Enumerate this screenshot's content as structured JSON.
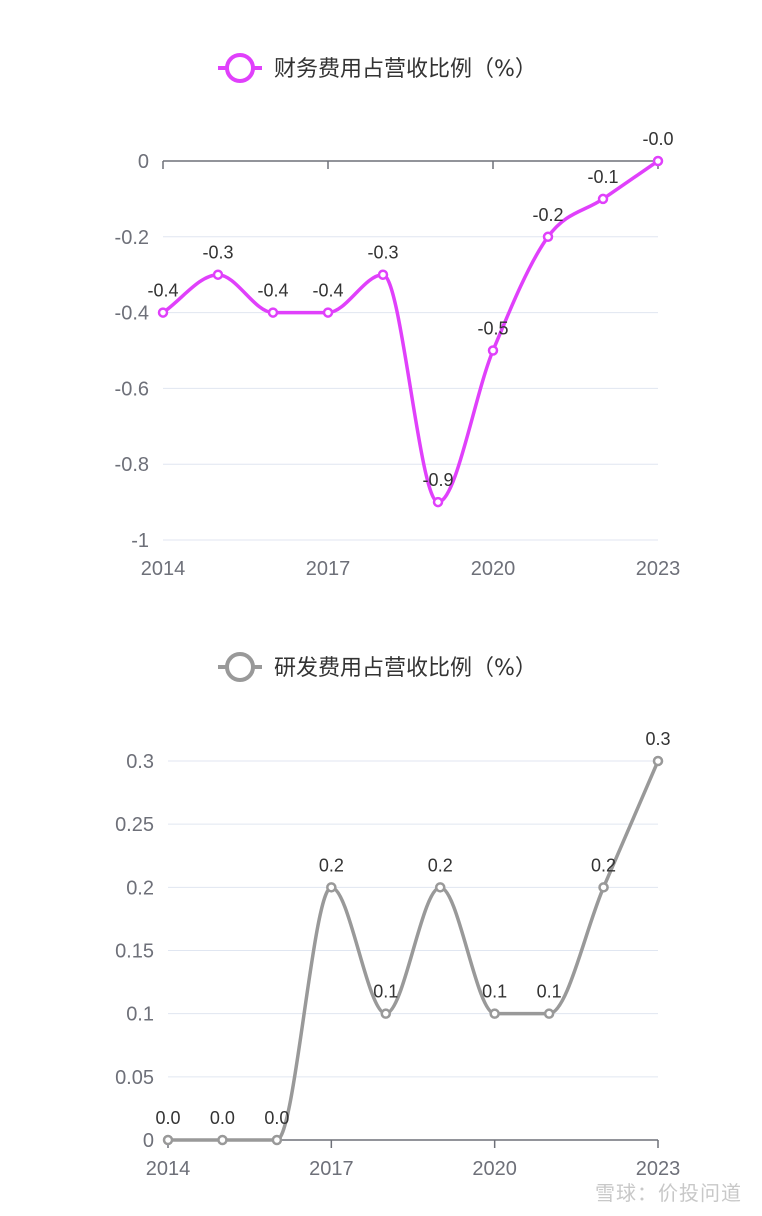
{
  "chart_data": [
    {
      "type": "line",
      "title": "",
      "legend": {
        "label": "财务费用占营收比例（%）",
        "placement": "top-center"
      },
      "color": "#e040fb",
      "x": [
        2014,
        2015,
        2016,
        2017,
        2018,
        2019,
        2020,
        2021,
        2022,
        2023
      ],
      "x_tick_labels": [
        "2014",
        "2017",
        "2020",
        "2023"
      ],
      "series": [
        {
          "name": "财务费用占营收比例（%）",
          "values": [
            -0.4,
            -0.3,
            -0.4,
            -0.4,
            -0.3,
            -0.9,
            -0.5,
            -0.2,
            -0.1,
            0.0
          ],
          "labels": [
            "-0.4",
            "-0.3",
            "-0.4",
            "-0.4",
            "-0.3",
            "-0.9",
            "-0.5",
            "-0.2",
            "-0.1",
            "-0.0"
          ]
        }
      ],
      "ylim": [
        -1,
        0
      ],
      "y_tick_values": [
        0,
        -0.2,
        -0.4,
        -0.6,
        -0.8,
        -1
      ],
      "y_tick_labels": [
        "0",
        "-0.2",
        "-0.4",
        "-0.6",
        "-0.8",
        "-1"
      ],
      "smooth": true,
      "grid": true,
      "xlabel": "",
      "ylabel": ""
    },
    {
      "type": "line",
      "title": "",
      "legend": {
        "label": "研发费用占营收比例（%）",
        "placement": "top-center"
      },
      "color": "#999999",
      "x": [
        2014,
        2015,
        2016,
        2017,
        2018,
        2019,
        2020,
        2021,
        2022,
        2023
      ],
      "x_tick_labels": [
        "2014",
        "2017",
        "2020",
        "2023"
      ],
      "series": [
        {
          "name": "研发费用占营收比例（%）",
          "values": [
            0.0,
            0.0,
            0.0,
            0.2,
            0.1,
            0.2,
            0.1,
            0.1,
            0.2,
            0.3
          ],
          "labels": [
            "0.0",
            "0.0",
            "0.0",
            "0.2",
            "0.1",
            "0.2",
            "0.1",
            "0.1",
            "0.2",
            "0.3"
          ]
        }
      ],
      "ylim": [
        0,
        0.3
      ],
      "y_tick_values": [
        0.3,
        0.25,
        0.2,
        0.15,
        0.1,
        0.05,
        0
      ],
      "y_tick_labels": [
        "0.3",
        "0.25",
        "0.2",
        "0.15",
        "0.1",
        "0.05",
        "0"
      ],
      "smooth": true,
      "grid": true,
      "xlabel": "",
      "ylabel": ""
    }
  ],
  "watermark": "雪球：价投问道"
}
